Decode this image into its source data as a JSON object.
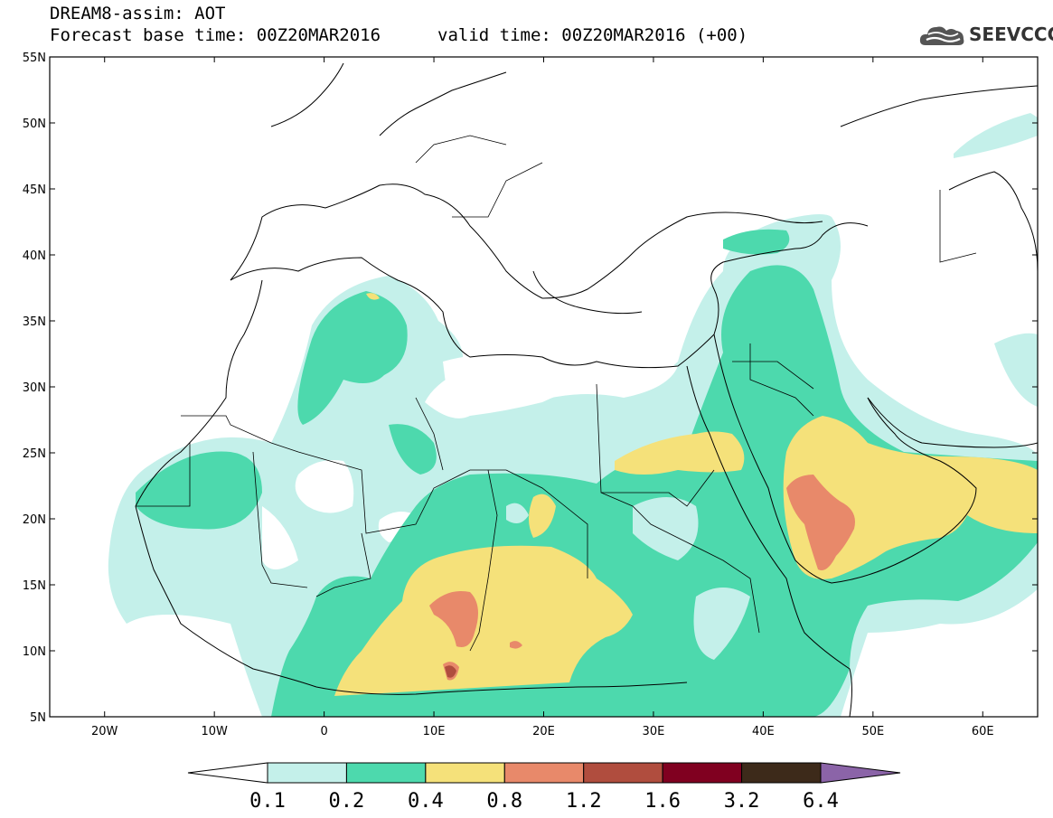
{
  "header": {
    "model": "DREAM8-assim: AOT",
    "base_time": "Forecast base time: 00Z20MAR2016",
    "valid_time": "valid time: 00Z20MAR2016 (+00)"
  },
  "logo": {
    "text": "SEEVCCC",
    "icon": "cloud-icon"
  },
  "map": {
    "lon_range": [
      -25,
      65
    ],
    "lat_range": [
      5,
      55
    ],
    "lat_ticks": [
      {
        "v": 55,
        "label": "55N"
      },
      {
        "v": 50,
        "label": "50N"
      },
      {
        "v": 45,
        "label": "45N"
      },
      {
        "v": 40,
        "label": "40N"
      },
      {
        "v": 35,
        "label": "35N"
      },
      {
        "v": 30,
        "label": "30N"
      },
      {
        "v": 25,
        "label": "25N"
      },
      {
        "v": 20,
        "label": "20N"
      },
      {
        "v": 15,
        "label": "15N"
      },
      {
        "v": 10,
        "label": "10N"
      },
      {
        "v": 5,
        "label": "5N"
      }
    ],
    "lon_ticks": [
      {
        "v": -20,
        "label": "20W"
      },
      {
        "v": -10,
        "label": "10W"
      },
      {
        "v": 0,
        "label": "0"
      },
      {
        "v": 10,
        "label": "10E"
      },
      {
        "v": 20,
        "label": "20E"
      },
      {
        "v": 30,
        "label": "30E"
      },
      {
        "v": 40,
        "label": "40E"
      },
      {
        "v": 50,
        "label": "50E"
      },
      {
        "v": 60,
        "label": "60E"
      }
    ]
  },
  "colorbar": {
    "levels": [
      "0.1",
      "0.2",
      "0.4",
      "0.8",
      "1.2",
      "1.6",
      "3.2",
      "6.4"
    ],
    "colors": [
      "#ffffff",
      "#c4f0ea",
      "#4dd9ad",
      "#f5e17a",
      "#e8896a",
      "#b04d3e",
      "#800020",
      "#3d2a1a",
      "#8b64a8"
    ]
  },
  "colors": {
    "level_0_1": "#c4f0ea",
    "level_0_2": "#4dd9ad",
    "level_0_4": "#f5e17a",
    "level_0_8": "#e8896a",
    "level_1_2": "#b04d3e"
  }
}
